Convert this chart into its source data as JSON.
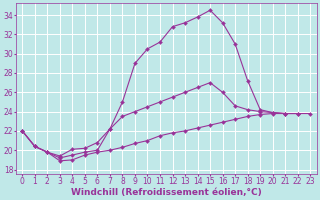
{
  "bg_color": "#c0e8e8",
  "grid_color": "#aadddd",
  "line_color": "#993399",
  "marker": "D",
  "marker_size": 2.0,
  "line_width": 0.8,
  "xlabel": "Windchill (Refroidissement éolien,°C)",
  "xlabel_fontsize": 6.5,
  "tick_fontsize": 5.5,
  "xlim": [
    -0.5,
    23.5
  ],
  "ylim": [
    17.5,
    35.2
  ],
  "yticks": [
    18,
    20,
    22,
    24,
    26,
    28,
    30,
    32,
    34
  ],
  "xticks": [
    0,
    1,
    2,
    3,
    4,
    5,
    6,
    7,
    8,
    9,
    10,
    11,
    12,
    13,
    14,
    15,
    16,
    17,
    18,
    19,
    20,
    21,
    22,
    23
  ],
  "series_x": [
    [
      0,
      1,
      2,
      3,
      4,
      5,
      6,
      7,
      8,
      9,
      10,
      11,
      12,
      13,
      14,
      15,
      16,
      17,
      18,
      19,
      20,
      21
    ],
    [
      0,
      1,
      2,
      3,
      4,
      5,
      6,
      7,
      8,
      9,
      10,
      11,
      12,
      13,
      14,
      15,
      16,
      17,
      18,
      19,
      20,
      21,
      22
    ],
    [
      0,
      1,
      2,
      3,
      4,
      5,
      6,
      7,
      8,
      9,
      10,
      11,
      12,
      13,
      14,
      15,
      16,
      17,
      18,
      19,
      20,
      21,
      22,
      23
    ]
  ],
  "series_y": [
    [
      22.0,
      20.4,
      19.8,
      19.2,
      19.5,
      19.8,
      20.0,
      22.2,
      25.0,
      29.0,
      30.5,
      31.2,
      32.8,
      33.2,
      33.8,
      34.5,
      33.2,
      31.0,
      27.2,
      24.2,
      23.9,
      23.8
    ],
    [
      22.0,
      20.4,
      19.8,
      19.4,
      20.1,
      20.2,
      20.8,
      22.2,
      23.5,
      24.0,
      24.5,
      25.0,
      25.5,
      26.0,
      26.5,
      27.0,
      26.0,
      24.6,
      24.2,
      24.0,
      23.9,
      23.8,
      23.8
    ],
    [
      22.0,
      20.4,
      19.8,
      18.9,
      19.0,
      19.5,
      19.8,
      20.0,
      20.3,
      20.7,
      21.0,
      21.5,
      21.8,
      22.0,
      22.3,
      22.6,
      22.9,
      23.2,
      23.5,
      23.7,
      23.8,
      23.8,
      23.8,
      23.8
    ]
  ]
}
